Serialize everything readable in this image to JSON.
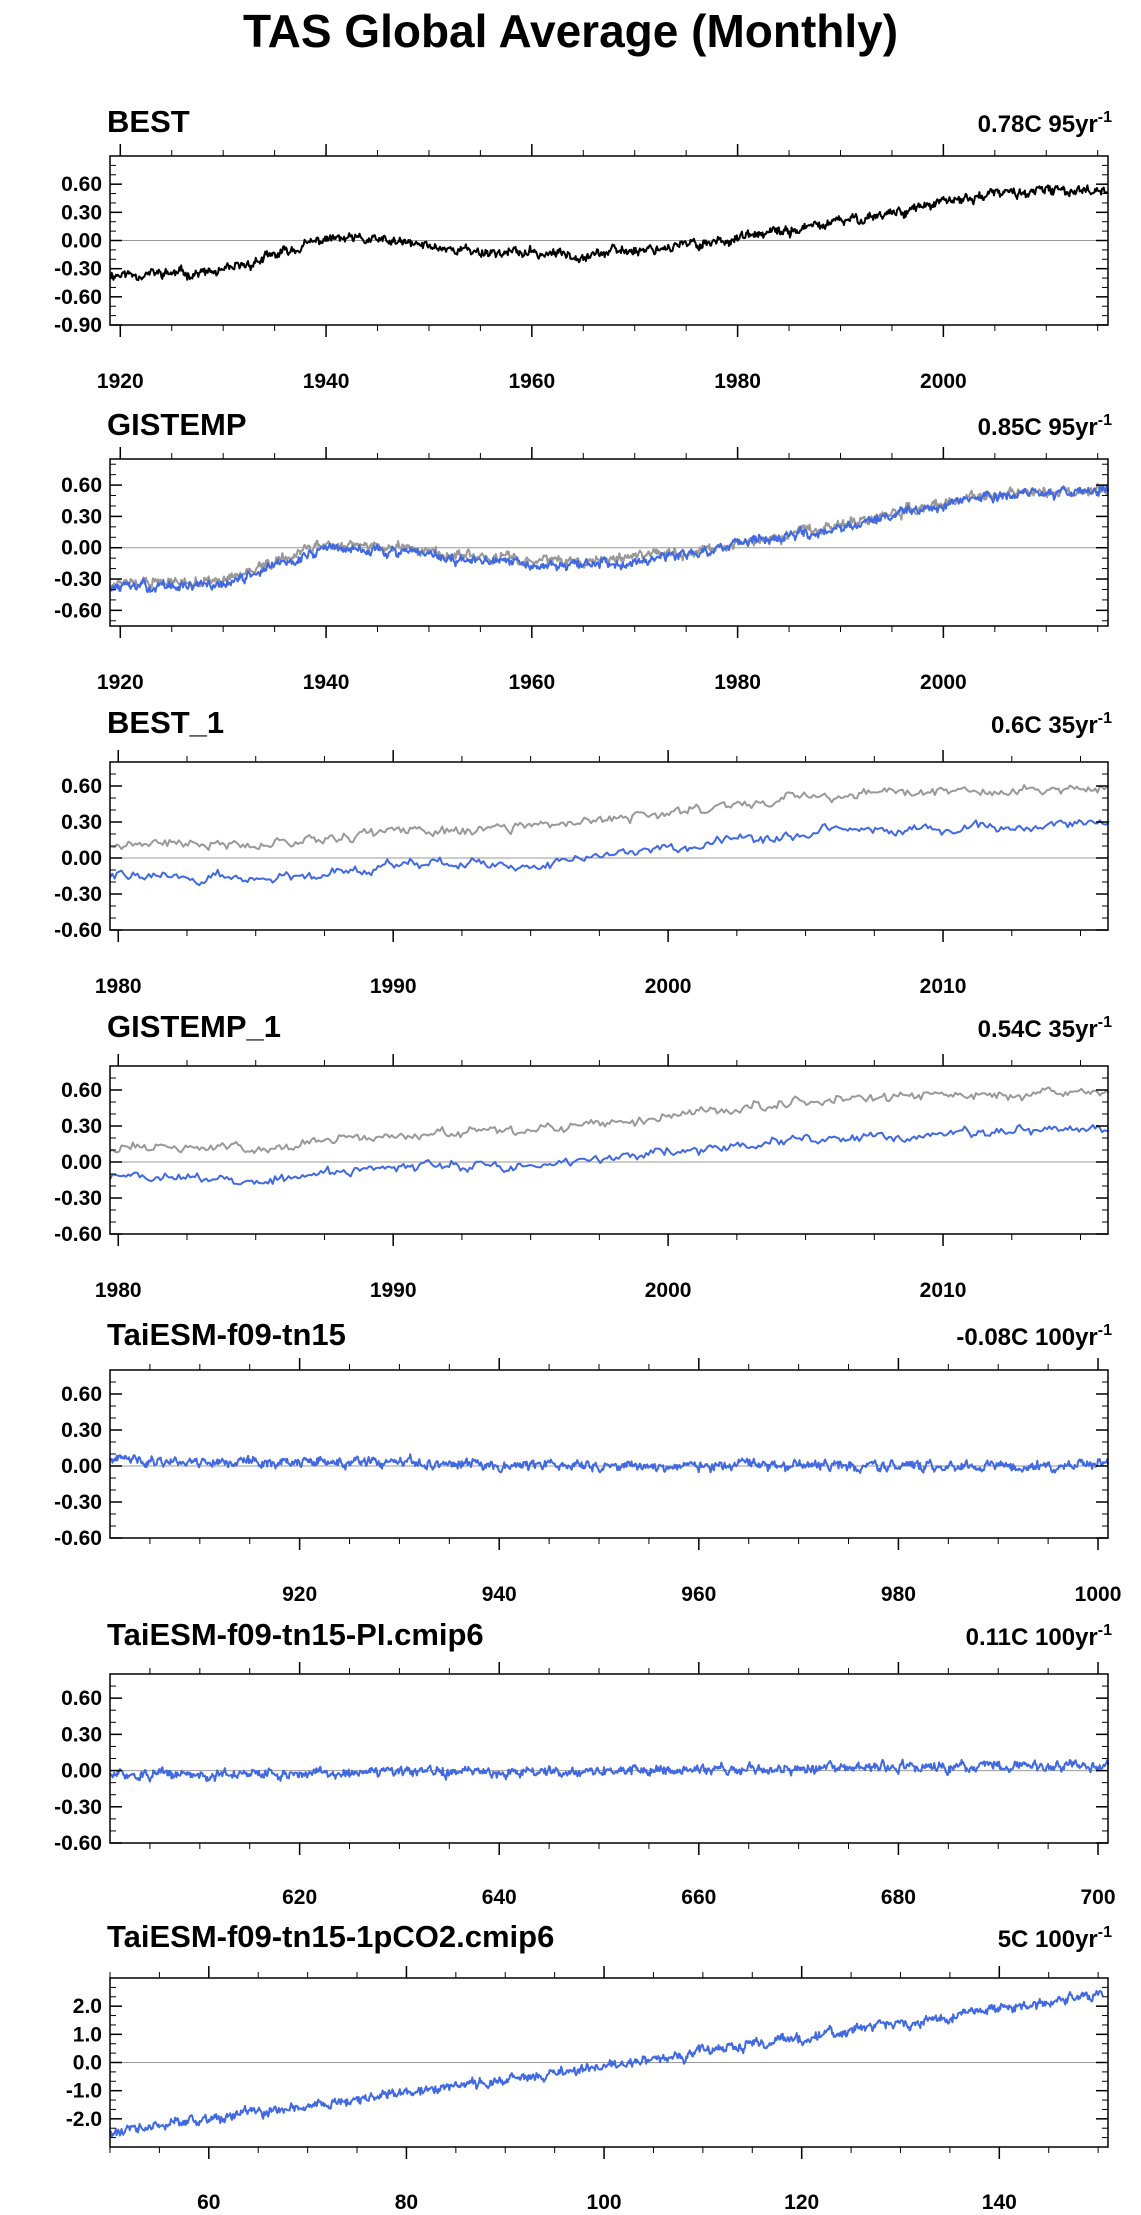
{
  "title": "TAS Global Average (Monthly)",
  "colors": {
    "observation": "#000000",
    "model": "#4169e1",
    "reference": "#999999",
    "zero_line": "#999999"
  },
  "chart_data": [
    {
      "type": "line",
      "title": "BEST",
      "trend": "0.78C 95yr",
      "trend_sup": "-1",
      "xlim": [
        1919,
        2016
      ],
      "ylim": [
        -0.9,
        0.9
      ],
      "yticks": [
        "0.60",
        "0.30",
        "0.00",
        "-0.30",
        "-0.60",
        "-0.90"
      ],
      "xticks": [
        "1920",
        "1940",
        "1960",
        "1980",
        "2000"
      ],
      "grid": false,
      "series": [
        {
          "color": "#000000",
          "seed": 11,
          "values": [
            [
              1920,
              -0.36
            ],
            [
              1930,
              -0.34
            ],
            [
              1940,
              0.02
            ],
            [
              1945,
              0.0
            ],
            [
              1955,
              -0.12
            ],
            [
              1965,
              -0.15
            ],
            [
              1975,
              -0.05
            ],
            [
              1985,
              0.1
            ],
            [
              1995,
              0.3
            ],
            [
              2005,
              0.5
            ],
            [
              2016,
              0.55
            ]
          ]
        }
      ]
    },
    {
      "type": "line",
      "title": "GISTEMP",
      "trend": "0.85C 95yr",
      "trend_sup": "-1",
      "xlim": [
        1919,
        2016
      ],
      "ylim": [
        -0.75,
        0.85
      ],
      "yticks": [
        "0.60",
        "0.30",
        "0.00",
        "-0.30",
        "-0.60"
      ],
      "xticks": [
        "1920",
        "1940",
        "1960",
        "1980",
        "2000"
      ],
      "grid": false,
      "series": [
        {
          "color": "#999999",
          "seed": 12,
          "values": [
            [
              1920,
              -0.34
            ],
            [
              1930,
              -0.32
            ],
            [
              1940,
              0.04
            ],
            [
              1945,
              0.02
            ],
            [
              1955,
              -0.1
            ],
            [
              1965,
              -0.13
            ],
            [
              1975,
              -0.04
            ],
            [
              1985,
              0.12
            ],
            [
              1995,
              0.32
            ],
            [
              2005,
              0.52
            ],
            [
              2016,
              0.56
            ]
          ]
        },
        {
          "color": "#4169e1",
          "seed": 13,
          "values": [
            [
              1920,
              -0.38
            ],
            [
              1930,
              -0.36
            ],
            [
              1940,
              0.0
            ],
            [
              1945,
              -0.02
            ],
            [
              1955,
              -0.14
            ],
            [
              1965,
              -0.17
            ],
            [
              1975,
              -0.06
            ],
            [
              1985,
              0.1
            ],
            [
              1995,
              0.3
            ],
            [
              2005,
              0.5
            ],
            [
              2016,
              0.56
            ]
          ]
        }
      ]
    },
    {
      "type": "line",
      "title": "BEST_1",
      "trend": "0.6C 35yr",
      "trend_sup": "-1",
      "xlim": [
        1979.7,
        2016
      ],
      "ylim": [
        -0.6,
        0.8
      ],
      "yticks": [
        "0.60",
        "0.30",
        "0.00",
        "-0.30",
        "-0.60"
      ],
      "xticks": [
        "1980",
        "1990",
        "2000",
        "2010"
      ],
      "grid": false,
      "series": [
        {
          "color": "#999999",
          "seed": 21,
          "values": [
            [
              1980,
              0.12
            ],
            [
              1985,
              0.12
            ],
            [
              1990,
              0.22
            ],
            [
              1995,
              0.25
            ],
            [
              2000,
              0.38
            ],
            [
              2005,
              0.52
            ],
            [
              2010,
              0.55
            ],
            [
              2016,
              0.58
            ]
          ]
        },
        {
          "color": "#4169e1",
          "seed": 22,
          "values": [
            [
              1980,
              -0.14
            ],
            [
              1985,
              -0.18
            ],
            [
              1990,
              -0.05
            ],
            [
              1995,
              -0.05
            ],
            [
              2000,
              0.08
            ],
            [
              2005,
              0.2
            ],
            [
              2010,
              0.25
            ],
            [
              2016,
              0.3
            ]
          ]
        }
      ]
    },
    {
      "type": "line",
      "title": "GISTEMP_1",
      "trend": "0.54C 35yr",
      "trend_sup": "-1",
      "xlim": [
        1979.7,
        2016
      ],
      "ylim": [
        -0.6,
        0.8
      ],
      "yticks": [
        "0.60",
        "0.30",
        "0.00",
        "-0.30",
        "-0.60"
      ],
      "xticks": [
        "1980",
        "1990",
        "2000",
        "2010"
      ],
      "grid": false,
      "series": [
        {
          "color": "#999999",
          "seed": 31,
          "values": [
            [
              1980,
              0.12
            ],
            [
              1985,
              0.12
            ],
            [
              1990,
              0.22
            ],
            [
              1995,
              0.25
            ],
            [
              2000,
              0.38
            ],
            [
              2005,
              0.52
            ],
            [
              2010,
              0.55
            ],
            [
              2016,
              0.58
            ]
          ]
        },
        {
          "color": "#4169e1",
          "seed": 32,
          "values": [
            [
              1980,
              -0.12
            ],
            [
              1985,
              -0.16
            ],
            [
              1990,
              -0.04
            ],
            [
              1995,
              -0.04
            ],
            [
              2000,
              0.08
            ],
            [
              2005,
              0.18
            ],
            [
              2010,
              0.24
            ],
            [
              2016,
              0.28
            ]
          ]
        }
      ]
    },
    {
      "type": "line",
      "title": "TaiESM-f09-tn15",
      "trend": "-0.08C 100yr",
      "trend_sup": "-1",
      "xlim": [
        901,
        1001
      ],
      "ylim": [
        -0.6,
        0.8
      ],
      "yticks": [
        "0.60",
        "0.30",
        "0.00",
        "-0.30",
        "-0.60"
      ],
      "xticks": [
        "920",
        "940",
        "960",
        "980",
        "1000"
      ],
      "grid": false,
      "series": [
        {
          "color": "#4169e1",
          "seed": 41,
          "values": [
            [
              901,
              0.05
            ],
            [
              950,
              0.0
            ],
            [
              1001,
              0.0
            ]
          ]
        }
      ]
    },
    {
      "type": "line",
      "title": "TaiESM-f09-tn15-PI.cmip6",
      "trend": "0.11C 100yr",
      "trend_sup": "-1",
      "xlim": [
        601,
        701
      ],
      "ylim": [
        -0.6,
        0.8
      ],
      "yticks": [
        "0.60",
        "0.30",
        "0.00",
        "-0.30",
        "-0.60"
      ],
      "xticks": [
        "620",
        "640",
        "660",
        "680",
        "700"
      ],
      "grid": false,
      "series": [
        {
          "color": "#4169e1",
          "seed": 51,
          "values": [
            [
              601,
              -0.04
            ],
            [
              651,
              0.0
            ],
            [
              701,
              0.04
            ]
          ]
        }
      ]
    },
    {
      "type": "line",
      "title": "TaiESM-f09-tn15-1pCO2.cmip6",
      "trend": "5C 100yr",
      "trend_sup": "-1",
      "xlim": [
        50,
        151
      ],
      "ylim": [
        -3.0,
        3.0
      ],
      "yticks": [
        "2.0",
        "1.0",
        "0.0",
        "-1.0",
        "-2.0"
      ],
      "xticks": [
        "60",
        "80",
        "100",
        "120",
        "140"
      ],
      "grid": false,
      "series": [
        {
          "color": "#4169e1",
          "seed": 61,
          "values": [
            [
              50,
              -2.5
            ],
            [
              75,
              -1.3
            ],
            [
              100,
              -0.15
            ],
            [
              125,
              1.15
            ],
            [
              150,
              2.4
            ]
          ]
        }
      ]
    }
  ]
}
